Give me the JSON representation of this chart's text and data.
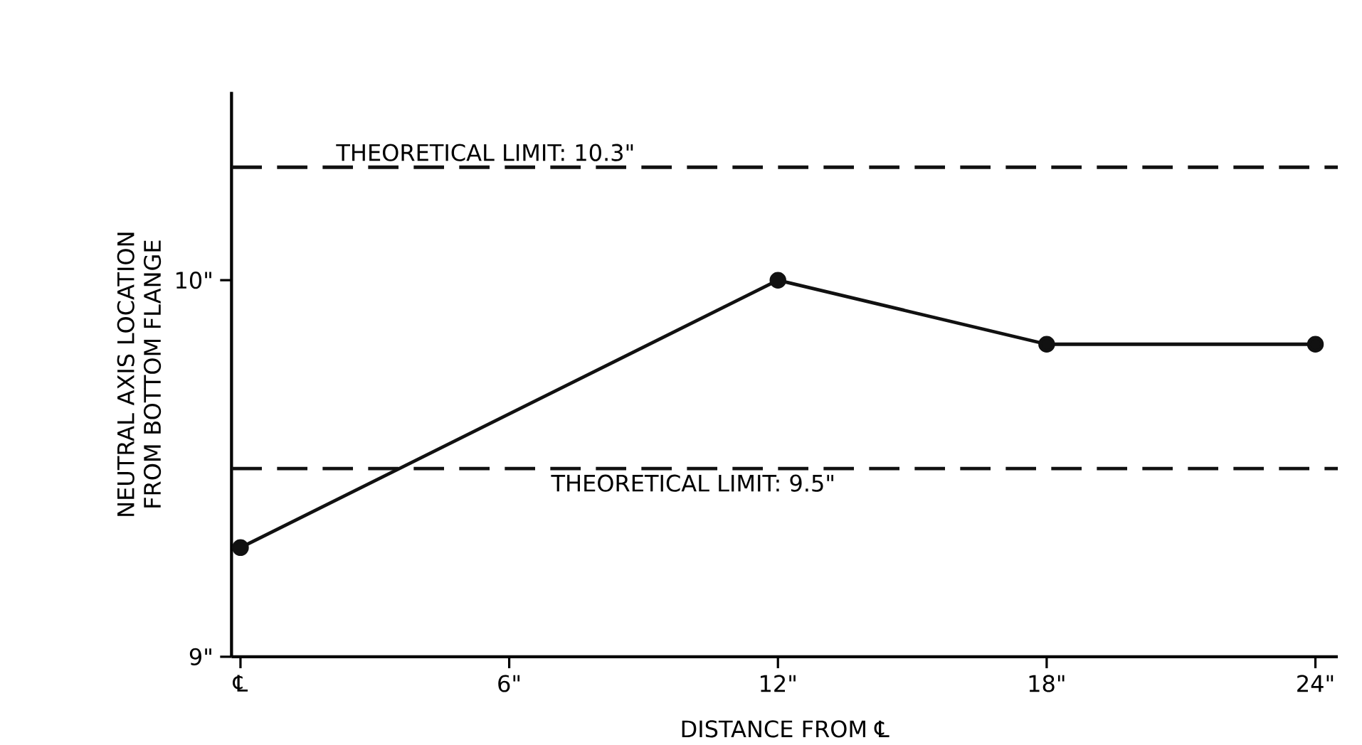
{
  "chart_data": {
    "type": "line",
    "xlabel": "DISTANCE FROM ℄",
    "ylabel": "NEUTRAL AXIS LOCATION FROM BOTTOM FLANGE",
    "x": [
      0,
      12,
      18,
      24
    ],
    "series": [
      {
        "color": "#111111",
        "values": [
          9.29,
          10.0,
          9.83,
          9.83
        ]
      }
    ],
    "marker": "circle",
    "line_style": "solid",
    "xlim": [
      -0.2,
      24.5
    ],
    "ylim": [
      9,
      10.5
    ],
    "xticks": [
      {
        "value": 0,
        "label": "℄"
      },
      {
        "value": 6,
        "label": "6\""
      },
      {
        "value": 12,
        "label": "12\""
      },
      {
        "value": 18,
        "label": "18\""
      },
      {
        "value": 24,
        "label": "24\""
      }
    ],
    "yticks": [
      {
        "value": 9,
        "label": "9\""
      },
      {
        "value": 10,
        "label": "10\""
      }
    ],
    "ref_lines": [
      {
        "axis": "y",
        "value": 10.3,
        "label": "THEORETICAL LIMIT: 10.3\"",
        "line_style": "dashed",
        "color": "#111111"
      },
      {
        "axis": "y",
        "value": 9.5,
        "label": "THEORETICAL LIMIT: 9.5\"",
        "line_style": "dashed",
        "color": "#111111"
      }
    ]
  }
}
